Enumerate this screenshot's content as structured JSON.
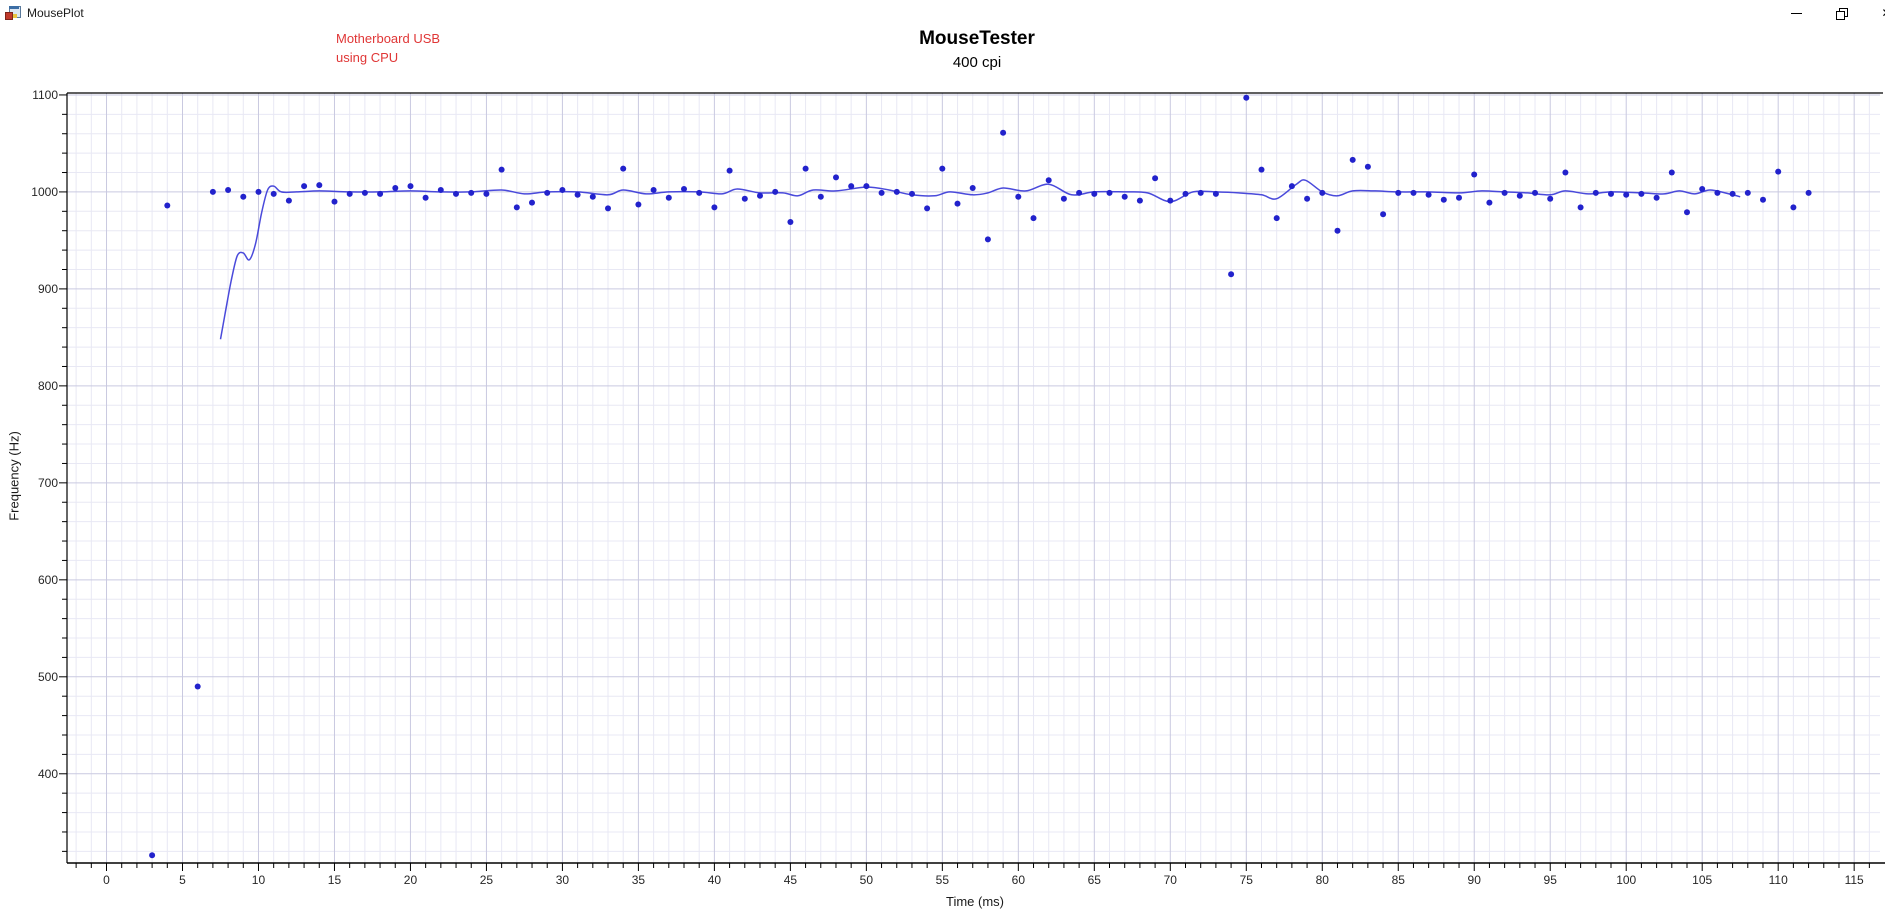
{
  "window": {
    "title": "MousePlot",
    "close_glyph": "✕",
    "controls": [
      "minimize",
      "restore-down",
      "close"
    ]
  },
  "chart_data": {
    "type": "scatter",
    "title": "MouseTester",
    "subtitle": "400 cpi",
    "xlabel": "Time (ms)",
    "ylabel": "Frequency (Hz)",
    "annotation": {
      "line1": "Motherboard USB",
      "line2": "using CPU"
    },
    "xlim": [
      -2.6,
      116.7
    ],
    "ylim": [
      308,
      1102
    ],
    "x_ticks": [
      0,
      5,
      10,
      15,
      20,
      25,
      30,
      35,
      40,
      45,
      50,
      55,
      60,
      65,
      70,
      75,
      80,
      85,
      90,
      95,
      100,
      105,
      110,
      115
    ],
    "y_ticks": [
      400,
      500,
      600,
      700,
      800,
      900,
      1000,
      1100
    ],
    "x_minor_step": 1,
    "y_minor_step": 20,
    "grid": true,
    "legend": "none",
    "colors": {
      "points": "#2222cc",
      "fit_line": "#3b3bd8",
      "grid_minor": "#e8e8f4",
      "grid_major": "#c9c9e0",
      "axis": "#000000",
      "tick_text": "#262626",
      "annotation": "#e03636",
      "title": "#000000"
    },
    "points": [
      [
        3,
        316
      ],
      [
        4,
        986
      ],
      [
        6,
        490
      ],
      [
        7,
        1000
      ],
      [
        8,
        1002
      ],
      [
        9,
        995
      ],
      [
        10,
        1000
      ],
      [
        11,
        998
      ],
      [
        12,
        991
      ],
      [
        13,
        1006
      ],
      [
        14,
        1007
      ],
      [
        15,
        990
      ],
      [
        16,
        998
      ],
      [
        17,
        999
      ],
      [
        18,
        998
      ],
      [
        19,
        1004
      ],
      [
        20,
        1006
      ],
      [
        21,
        994
      ],
      [
        22,
        1002
      ],
      [
        23,
        998
      ],
      [
        24,
        999
      ],
      [
        25,
        998
      ],
      [
        26,
        1023
      ],
      [
        27,
        984
      ],
      [
        28,
        989
      ],
      [
        29,
        999
      ],
      [
        30,
        1002
      ],
      [
        31,
        997
      ],
      [
        32,
        995
      ],
      [
        33,
        983
      ],
      [
        34,
        1024
      ],
      [
        35,
        987
      ],
      [
        36,
        1002
      ],
      [
        37,
        994
      ],
      [
        38,
        1003
      ],
      [
        39,
        999
      ],
      [
        40,
        984
      ],
      [
        41,
        1022
      ],
      [
        42,
        993
      ],
      [
        43,
        996
      ],
      [
        44,
        1000
      ],
      [
        45,
        969
      ],
      [
        46,
        1024
      ],
      [
        47,
        995
      ],
      [
        48,
        1015
      ],
      [
        49,
        1006
      ],
      [
        50,
        1006
      ],
      [
        51,
        999
      ],
      [
        52,
        1000
      ],
      [
        53,
        998
      ],
      [
        54,
        983
      ],
      [
        55,
        1024
      ],
      [
        56,
        988
      ],
      [
        57,
        1004
      ],
      [
        58,
        951
      ],
      [
        59,
        1061
      ],
      [
        60,
        995
      ],
      [
        61,
        973
      ],
      [
        62,
        1012
      ],
      [
        63,
        993
      ],
      [
        64,
        999
      ],
      [
        65,
        998
      ],
      [
        66,
        999
      ],
      [
        67,
        995
      ],
      [
        68,
        991
      ],
      [
        69,
        1014
      ],
      [
        70,
        991
      ],
      [
        71,
        998
      ],
      [
        72,
        999
      ],
      [
        73,
        998
      ],
      [
        74,
        915
      ],
      [
        75,
        1097
      ],
      [
        76,
        1023
      ],
      [
        77,
        973
      ],
      [
        78,
        1006
      ],
      [
        79,
        993
      ],
      [
        80,
        999
      ],
      [
        81,
        960
      ],
      [
        82,
        1033
      ],
      [
        83,
        1026
      ],
      [
        84,
        977
      ],
      [
        85,
        999
      ],
      [
        86,
        999
      ],
      [
        87,
        997
      ],
      [
        88,
        992
      ],
      [
        89,
        994
      ],
      [
        90,
        1018
      ],
      [
        91,
        989
      ],
      [
        92,
        999
      ],
      [
        93,
        996
      ],
      [
        94,
        999
      ],
      [
        95,
        993
      ],
      [
        96,
        1020
      ],
      [
        97,
        984
      ],
      [
        98,
        999
      ],
      [
        99,
        998
      ],
      [
        100,
        997
      ],
      [
        101,
        998
      ],
      [
        102,
        994
      ],
      [
        103,
        1020
      ],
      [
        104,
        979
      ],
      [
        105,
        1003
      ],
      [
        106,
        999
      ],
      [
        107,
        998
      ],
      [
        108,
        999
      ],
      [
        109,
        992
      ],
      [
        110,
        1021
      ],
      [
        111,
        984
      ],
      [
        112,
        999
      ]
    ],
    "fit_line": [
      [
        7.5,
        848
      ],
      [
        7.8,
        874
      ],
      [
        8.2,
        908
      ],
      [
        8.6,
        934
      ],
      [
        9.0,
        937
      ],
      [
        9.4,
        930
      ],
      [
        9.8,
        946
      ],
      [
        10.2,
        978
      ],
      [
        10.6,
        1002
      ],
      [
        11.0,
        1006
      ],
      [
        11.5,
        1000
      ],
      [
        12.5,
        1000
      ],
      [
        14,
        1001
      ],
      [
        16,
        1000
      ],
      [
        18,
        1000
      ],
      [
        20,
        1001
      ],
      [
        22,
        1000
      ],
      [
        24,
        1000
      ],
      [
        26,
        1002
      ],
      [
        27.5,
        998
      ],
      [
        29,
        1000
      ],
      [
        31,
        1000
      ],
      [
        33,
        997
      ],
      [
        34,
        1002
      ],
      [
        35.5,
        998
      ],
      [
        37,
        1000
      ],
      [
        39,
        1000
      ],
      [
        40.5,
        998
      ],
      [
        41.5,
        1003
      ],
      [
        43,
        999
      ],
      [
        44.5,
        999
      ],
      [
        45.5,
        996
      ],
      [
        46.5,
        1002
      ],
      [
        48,
        1001
      ],
      [
        50,
        1005
      ],
      [
        51.5,
        1002
      ],
      [
        53,
        997
      ],
      [
        54.5,
        996
      ],
      [
        55.5,
        1000
      ],
      [
        57,
        997
      ],
      [
        58,
        999
      ],
      [
        59,
        1004
      ],
      [
        60.5,
        1001
      ],
      [
        62,
        1008
      ],
      [
        63.5,
        997
      ],
      [
        65,
        1000
      ],
      [
        67,
        1000
      ],
      [
        68.5,
        999
      ],
      [
        70,
        990
      ],
      [
        71.5,
        1000
      ],
      [
        73,
        1000
      ],
      [
        74.5,
        999
      ],
      [
        76,
        997
      ],
      [
        77,
        993
      ],
      [
        78.3,
        1008
      ],
      [
        78.9,
        1012
      ],
      [
        80,
        1000
      ],
      [
        81,
        996
      ],
      [
        82,
        1001
      ],
      [
        83.5,
        1001
      ],
      [
        85,
        1000
      ],
      [
        87,
        1000
      ],
      [
        89,
        999
      ],
      [
        90.5,
        1001
      ],
      [
        92,
        1000
      ],
      [
        93.5,
        999
      ],
      [
        95,
        997
      ],
      [
        96,
        1001
      ],
      [
        97.5,
        998
      ],
      [
        99,
        1000
      ],
      [
        101,
        999
      ],
      [
        102.5,
        998
      ],
      [
        103.5,
        1001
      ],
      [
        104.5,
        998
      ],
      [
        105.5,
        1002
      ],
      [
        106.5,
        999
      ],
      [
        107.5,
        995
      ]
    ]
  }
}
